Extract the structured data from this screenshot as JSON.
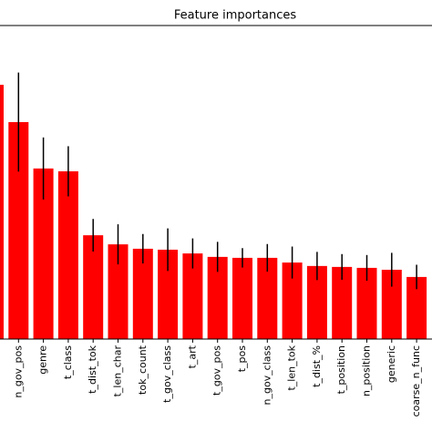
{
  "chart_data": {
    "type": "bar",
    "title": "Feature importances",
    "categories": [
      null,
      "n_gov_pos",
      "genre",
      "t_class",
      "t_dist_tok",
      "t_len_char",
      "tok_count",
      "t_gov_class",
      "t_art",
      "t_gov_pos",
      "t_pos",
      "n_gov_class",
      "t_len_tok",
      "t_dist_%",
      "t_position",
      "n_position",
      "generic",
      "coarse_n_func"
    ],
    "values": [
      0.0811,
      0.0692,
      0.0544,
      0.0535,
      0.0331,
      0.0302,
      0.0288,
      0.0285,
      0.0273,
      0.0262,
      0.0259,
      0.0259,
      0.0244,
      0.0233,
      0.023,
      0.0227,
      0.0221,
      0.0198
    ],
    "errors": [
      null,
      0.0158,
      0.0099,
      0.008,
      0.0052,
      0.0064,
      0.0047,
      0.0068,
      0.0048,
      0.0048,
      0.0031,
      0.0044,
      0.0051,
      0.0045,
      0.0041,
      0.0041,
      0.0054,
      0.0039
    ],
    "color": "#ff0000",
    "error_color": "#000000",
    "ylim": [
      0,
      0.1
    ]
  }
}
